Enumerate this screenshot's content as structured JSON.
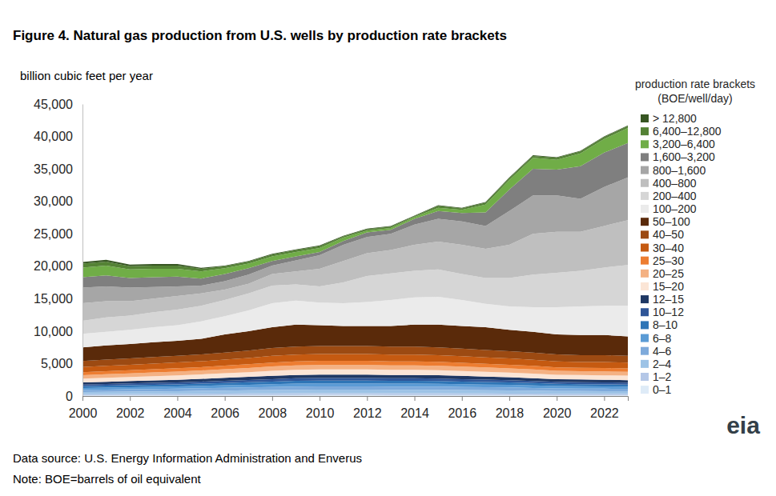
{
  "chart_data": {
    "type": "area",
    "stacked": true,
    "grid": false,
    "legend": "right",
    "title": "Figure 4. Natural gas production from U.S. wells by production rate brackets",
    "y_label": "billion cubic feet per year",
    "legend_title": [
      "production rate brackets",
      "(BOE/well/day)"
    ],
    "notes": [
      "Data source: U.S. Energy Information Administration and Enverus",
      "Note: BOE=barrels of oil equivalent"
    ],
    "logo": "eia",
    "x": [
      2000,
      2001,
      2002,
      2003,
      2004,
      2005,
      2006,
      2007,
      2008,
      2009,
      2010,
      2011,
      2012,
      2013,
      2014,
      2015,
      2016,
      2017,
      2018,
      2019,
      2020,
      2021,
      2022,
      2023
    ],
    "xlim": [
      2000,
      2023
    ],
    "xticks": [
      2000,
      2002,
      2004,
      2006,
      2008,
      2010,
      2012,
      2014,
      2016,
      2018,
      2020,
      2022
    ],
    "ylim": [
      0,
      45000
    ],
    "yticks": [
      0,
      {
        "value": 5000,
        "label": "5,000"
      },
      {
        "value": 10000,
        "label": "10,000"
      },
      {
        "value": 15000,
        "label": "15,000"
      },
      {
        "value": 20000,
        "label": "20,000"
      },
      {
        "value": 25000,
        "label": "25,000"
      },
      {
        "value": 30000,
        "label": "30,000"
      },
      {
        "value": 35000,
        "label": "35,000"
      },
      {
        "value": 40000,
        "label": "40,000"
      },
      {
        "value": 45000,
        "label": "45,000"
      }
    ],
    "series": [
      {
        "name": "0–1",
        "color": "#deebf7",
        "values": [
          100,
          110,
          120,
          120,
          130,
          130,
          140,
          150,
          160,
          160,
          170,
          170,
          170,
          160,
          160,
          160,
          160,
          150,
          150,
          140,
          130,
          130,
          130,
          120
        ]
      },
      {
        "name": "1–2",
        "color": "#b4c7e7",
        "values": [
          170,
          180,
          180,
          190,
          200,
          210,
          220,
          240,
          250,
          260,
          260,
          260,
          260,
          260,
          260,
          260,
          250,
          240,
          230,
          220,
          210,
          200,
          200,
          200
        ]
      },
      {
        "name": "2–4",
        "color": "#9dc3e6",
        "values": [
          360,
          370,
          390,
          410,
          420,
          450,
          480,
          500,
          530,
          550,
          560,
          560,
          560,
          550,
          550,
          540,
          530,
          510,
          490,
          470,
          440,
          430,
          420,
          420
        ]
      },
      {
        "name": "4–6",
        "color": "#7eaadb",
        "values": [
          320,
          330,
          350,
          360,
          380,
          400,
          420,
          440,
          460,
          490,
          500,
          500,
          500,
          490,
          490,
          480,
          460,
          450,
          440,
          410,
          390,
          380,
          380,
          370
        ]
      },
      {
        "name": "6–8",
        "color": "#5b9bd5",
        "values": [
          290,
          310,
          320,
          340,
          350,
          370,
          390,
          410,
          430,
          460,
          460,
          460,
          460,
          460,
          460,
          450,
          430,
          420,
          410,
          390,
          360,
          360,
          350,
          340
        ]
      },
      {
        "name": "8–10",
        "color": "#2e75b6",
        "values": [
          270,
          290,
          300,
          310,
          320,
          340,
          360,
          380,
          400,
          420,
          430,
          430,
          430,
          420,
          420,
          420,
          400,
          390,
          380,
          360,
          340,
          330,
          320,
          320
        ]
      },
      {
        "name": "10–12",
        "color": "#2f5597",
        "values": [
          250,
          260,
          280,
          290,
          300,
          320,
          340,
          350,
          370,
          390,
          400,
          400,
          400,
          390,
          390,
          380,
          370,
          360,
          350,
          330,
          310,
          310,
          300,
          290
        ]
      },
      {
        "name": "12–15",
        "color": "#1f3864",
        "values": [
          340,
          350,
          360,
          380,
          400,
          430,
          450,
          480,
          500,
          520,
          520,
          520,
          520,
          520,
          520,
          510,
          500,
          480,
          450,
          430,
          420,
          410,
          400,
          390
        ]
      },
      {
        "name": "15–20",
        "color": "#fbe5d6",
        "values": [
          590,
          610,
          630,
          650,
          670,
          680,
          700,
          730,
          770,
          780,
          790,
          790,
          790,
          780,
          780,
          770,
          760,
          740,
          720,
          710,
          680,
          680,
          680,
          680
        ]
      },
      {
        "name": "20–25",
        "color": "#f4b183",
        "values": [
          530,
          540,
          560,
          580,
          590,
          600,
          620,
          650,
          690,
          700,
          700,
          700,
          700,
          700,
          700,
          690,
          670,
          660,
          640,
          630,
          610,
          600,
          610,
          600
        ]
      },
      {
        "name": "25–30",
        "color": "#ed7d31",
        "values": [
          460,
          480,
          490,
          500,
          520,
          520,
          550,
          570,
          600,
          610,
          620,
          620,
          620,
          610,
          610,
          600,
          590,
          570,
          560,
          550,
          530,
          520,
          530,
          520
        ]
      },
      {
        "name": "30–40",
        "color": "#c55a11",
        "values": [
          790,
          820,
          840,
          860,
          890,
          900,
          940,
          970,
          1030,
          1040,
          1060,
          1060,
          1060,
          1040,
          1040,
          1030,
          1010,
          980,
          960,
          950,
          910,
          900,
          910,
          900
        ]
      },
      {
        "name": "40–50",
        "color": "#9c4a12",
        "values": [
          930,
          950,
          980,
          1010,
          1030,
          1050,
          1090,
          1130,
          1210,
          1220,
          1230,
          1230,
          1230,
          1220,
          1220,
          1210,
          1170,
          1150,
          1120,
          1110,
          1070,
          1050,
          1070,
          1050
        ]
      },
      {
        "name": "50–100",
        "color": "#5a2a0a",
        "values": [
          2100,
          2200,
          2200,
          2300,
          2300,
          2400,
          2800,
          3000,
          3200,
          3400,
          3200,
          3100,
          3100,
          3200,
          3400,
          3500,
          3500,
          3500,
          3300,
          3200,
          3100,
          3100,
          3100,
          3000
        ]
      },
      {
        "name": "100–200",
        "color": "#ebebeb",
        "values": [
          2100,
          2100,
          2200,
          2300,
          2400,
          2700,
          2800,
          3200,
          3700,
          3700,
          3500,
          3500,
          3700,
          4000,
          4200,
          4300,
          4000,
          3600,
          3600,
          3800,
          4200,
          4400,
          4500,
          4700
        ]
      },
      {
        "name": "200–400",
        "color": "#d6d6d6",
        "values": [
          2000,
          2200,
          2200,
          2300,
          2400,
          2400,
          2500,
          2600,
          2700,
          2500,
          2500,
          3200,
          4000,
          4100,
          4100,
          4200,
          4000,
          4000,
          4400,
          5000,
          5300,
          5500,
          5900,
          6300
        ]
      },
      {
        "name": "400–800",
        "color": "#bfbfbf",
        "values": [
          2700,
          2500,
          2200,
          2100,
          2100,
          1900,
          1600,
          1500,
          1800,
          2000,
          2700,
          3300,
          3500,
          3600,
          4000,
          4300,
          4500,
          4500,
          5100,
          6300,
          6300,
          6000,
          6400,
          6900
        ]
      },
      {
        "name": "800–1,600",
        "color": "#a6a6a6",
        "values": [
          2400,
          2300,
          2100,
          1800,
          1500,
          1200,
          1300,
          1400,
          1300,
          1700,
          2100,
          2500,
          2500,
          2500,
          3100,
          3500,
          3600,
          3500,
          5200,
          5900,
          5600,
          5100,
          6000,
          6600
        ]
      },
      {
        "name": "1,600–3,200",
        "color": "#7f7f7f",
        "values": [
          1600,
          1700,
          1500,
          1500,
          1500,
          1100,
          1100,
          1000,
          700,
          600,
          500,
          600,
          700,
          600,
          900,
          1200,
          1300,
          2100,
          3300,
          4100,
          4000,
          5000,
          5300,
          5300
        ]
      },
      {
        "name": "3,200–6,400",
        "color": "#70ad47",
        "values": [
          1500,
          1500,
          1300,
          1300,
          1200,
          1100,
          900,
          700,
          700,
          700,
          600,
          500,
          300,
          300,
          300,
          500,
          500,
          1200,
          1500,
          1700,
          1500,
          2000,
          2100,
          2300
        ]
      },
      {
        "name": "6,400–12,800",
        "color": "#548235",
        "values": [
          600,
          600,
          500,
          500,
          500,
          400,
          300,
          300,
          300,
          300,
          300,
          200,
          200,
          200,
          100,
          300,
          200,
          300,
          300,
          300,
          300,
          300,
          300,
          300
        ]
      },
      {
        "name": "> 12,800",
        "color": "#375623",
        "values": [
          250,
          300,
          250,
          250,
          250,
          150,
          100,
          100,
          100,
          100,
          100,
          100,
          100,
          100,
          100,
          100,
          100,
          100,
          100,
          100,
          100,
          100,
          100,
          100
        ]
      }
    ]
  }
}
